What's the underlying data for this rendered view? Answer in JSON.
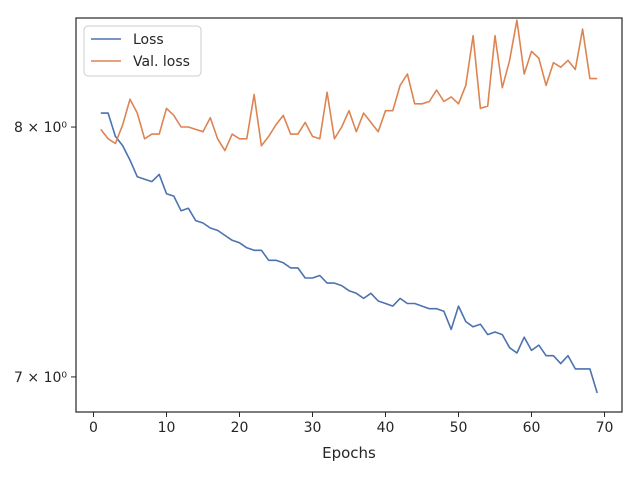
{
  "chart_data": {
    "type": "line",
    "title": "",
    "xlabel": "Epochs",
    "ylabel": "",
    "xlim": [
      -2.4,
      72.4
    ],
    "ylim": [
      6.87,
      8.48
    ],
    "yscale": "log",
    "xticks": [
      0,
      10,
      20,
      30,
      40,
      50,
      60,
      70
    ],
    "yticks": [
      {
        "value": 7,
        "label": "7 × 10⁰"
      },
      {
        "value": 8,
        "label": "8 × 10⁰"
      }
    ],
    "grid": false,
    "legend_position": "upper-left",
    "series": [
      {
        "name": "Loss",
        "color": "#4c72b0",
        "x": [
          1,
          2,
          3,
          4,
          5,
          6,
          7,
          8,
          9,
          10,
          11,
          12,
          13,
          14,
          15,
          16,
          17,
          18,
          19,
          20,
          21,
          22,
          23,
          24,
          25,
          26,
          27,
          28,
          29,
          30,
          31,
          32,
          33,
          34,
          35,
          36,
          37,
          38,
          39,
          40,
          41,
          42,
          43,
          44,
          45,
          46,
          47,
          48,
          49,
          50,
          51,
          52,
          53,
          54,
          55,
          56,
          57,
          58,
          59,
          60,
          61,
          62,
          63,
          64,
          65,
          66,
          67,
          68,
          69
        ],
        "values": [
          8.06,
          8.06,
          7.96,
          7.92,
          7.86,
          7.79,
          7.78,
          7.77,
          7.8,
          7.72,
          7.71,
          7.65,
          7.66,
          7.61,
          7.6,
          7.58,
          7.57,
          7.55,
          7.53,
          7.52,
          7.5,
          7.49,
          7.49,
          7.45,
          7.45,
          7.44,
          7.42,
          7.42,
          7.38,
          7.38,
          7.39,
          7.36,
          7.36,
          7.35,
          7.33,
          7.32,
          7.3,
          7.32,
          7.29,
          7.28,
          7.27,
          7.3,
          7.28,
          7.28,
          7.27,
          7.26,
          7.26,
          7.25,
          7.18,
          7.27,
          7.21,
          7.19,
          7.2,
          7.16,
          7.17,
          7.16,
          7.11,
          7.09,
          7.15,
          7.1,
          7.12,
          7.08,
          7.08,
          7.05,
          7.08,
          7.03,
          7.03,
          7.03,
          6.94
        ]
      },
      {
        "name": "Val. loss",
        "color": "#dd8452",
        "x": [
          1,
          2,
          3,
          4,
          5,
          6,
          7,
          8,
          9,
          10,
          11,
          12,
          13,
          14,
          15,
          16,
          17,
          18,
          19,
          20,
          21,
          22,
          23,
          24,
          25,
          26,
          27,
          28,
          29,
          30,
          31,
          32,
          33,
          34,
          35,
          36,
          37,
          38,
          39,
          40,
          41,
          42,
          43,
          44,
          45,
          46,
          47,
          48,
          49,
          50,
          51,
          52,
          53,
          54,
          55,
          56,
          57,
          58,
          59,
          60,
          61,
          62,
          63,
          64,
          65,
          66,
          67,
          68,
          69
        ],
        "values": [
          7.99,
          7.95,
          7.93,
          8.01,
          8.12,
          8.06,
          7.95,
          7.97,
          7.97,
          8.08,
          8.05,
          8.0,
          8.0,
          7.99,
          7.98,
          8.04,
          7.95,
          7.9,
          7.97,
          7.95,
          7.95,
          8.14,
          7.92,
          7.96,
          8.01,
          8.05,
          7.97,
          7.97,
          8.02,
          7.96,
          7.95,
          8.15,
          7.95,
          8.0,
          8.07,
          7.98,
          8.06,
          8.02,
          7.98,
          8.07,
          8.07,
          8.18,
          8.23,
          8.1,
          8.1,
          8.11,
          8.16,
          8.11,
          8.13,
          8.1,
          8.18,
          8.4,
          8.08,
          8.09,
          8.4,
          8.17,
          8.29,
          8.47,
          8.23,
          8.33,
          8.3,
          8.18,
          8.28,
          8.26,
          8.29,
          8.25,
          8.43,
          8.21,
          8.21
        ]
      }
    ]
  }
}
